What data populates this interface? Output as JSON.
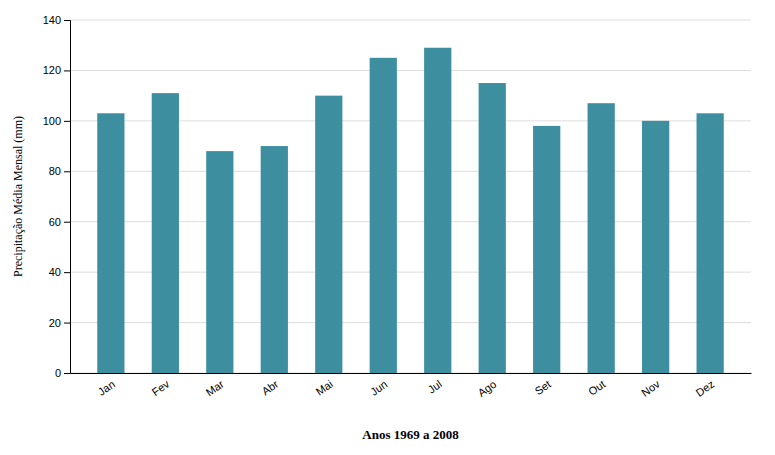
{
  "chart_data": {
    "type": "bar",
    "categories": [
      "Jan",
      "Fev",
      "Mar",
      "Abr",
      "Mai",
      "Jun",
      "Jul",
      "Ago",
      "Set",
      "Out",
      "Nov",
      "Dez"
    ],
    "values": [
      103,
      111,
      88,
      90,
      110,
      125,
      129,
      115,
      98,
      107,
      100,
      103
    ],
    "color": "#3d8fa0",
    "xlabel": "Anos 1969 a 2008",
    "ylabel": "Precipitação Média Mensal (mm)",
    "ylim": [
      0,
      140
    ],
    "yticks": [
      0,
      20,
      40,
      60,
      80,
      100,
      120,
      140
    ],
    "grid": true
  }
}
